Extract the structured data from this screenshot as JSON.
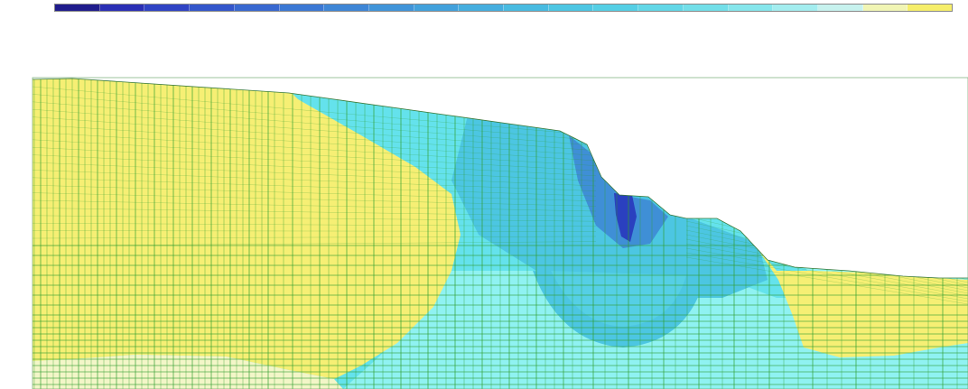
{
  "legend": {
    "colors": [
      "#1f1c8c",
      "#2a2fb5",
      "#2f43c4",
      "#3356cb",
      "#3868d0",
      "#3b78d4",
      "#3e86d6",
      "#4094d9",
      "#42a1dc",
      "#45aedf",
      "#48bbe1",
      "#4dc6e3",
      "#55cfe5",
      "#62d7e7",
      "#72dfe9",
      "#86e6ec",
      "#a3edef",
      "#c7f2ee",
      "#f1f5b4",
      "#f6ee6a"
    ],
    "tick_labels": [
      "",
      "",
      "",
      "",
      "",
      "",
      "",
      "",
      "",
      "",
      "",
      "",
      "",
      "",
      "",
      "",
      "",
      "",
      "",
      "",
      ""
    ]
  },
  "info": {
    "lines": [
      "",
      "",
      "",
      "",
      ""
    ]
  },
  "diagram": {
    "fill_colors": {
      "yellow": "#f6ef74",
      "cyan_pale": "#8ff2f2",
      "cyan_mid": "#64e2ec",
      "cyan_deep": "#4cc6e2",
      "blue": "#3f8fd6",
      "blue_deep": "#2a40bf",
      "mesh_line": "#2f9d2f",
      "yellow_pale": "#f3f6c8"
    }
  }
}
